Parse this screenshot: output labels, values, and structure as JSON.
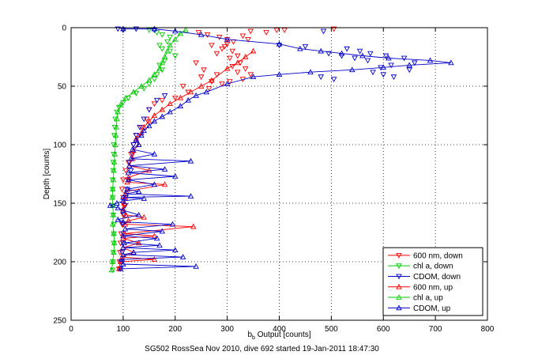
{
  "chart_data": {
    "type": "scatter",
    "title": "",
    "caption": "SG502 RossSea Nov 2010, dive 692 started 19-Jan-2011 18:47:30",
    "xlabel_main": "b",
    "xlabel_sub": "b",
    "xlabel_rest": " Output [counts]",
    "ylabel": "Depth [counts]",
    "xlim": [
      0,
      800
    ],
    "ylim": [
      0,
      250
    ],
    "y_reversed": true,
    "xticks": [
      0,
      100,
      200,
      300,
      400,
      500,
      600,
      700,
      800
    ],
    "yticks": [
      0,
      50,
      100,
      150,
      200,
      250
    ],
    "grid": true,
    "legend_position": "bottom-right",
    "series": [
      {
        "name": "600 nm, down",
        "color": "#ff0000",
        "marker": "triangle-down",
        "line": false,
        "points": [
          [
            245,
            4
          ],
          [
            262,
            6
          ],
          [
            285,
            8
          ],
          [
            300,
            10
          ],
          [
            330,
            7
          ],
          [
            345,
            3
          ],
          [
            375,
            4
          ],
          [
            395,
            2
          ],
          [
            410,
            2
          ],
          [
            505,
            1
          ],
          [
            270,
            15
          ],
          [
            290,
            18
          ],
          [
            310,
            20
          ],
          [
            320,
            24
          ],
          [
            325,
            30
          ],
          [
            305,
            26
          ],
          [
            280,
            22
          ],
          [
            295,
            16
          ],
          [
            312,
            12
          ],
          [
            340,
            10
          ],
          [
            300,
            14
          ],
          [
            310,
            33
          ],
          [
            320,
            38
          ],
          [
            335,
            35
          ],
          [
            345,
            40
          ],
          [
            330,
            44
          ],
          [
            305,
            46
          ],
          [
            290,
            48
          ],
          [
            270,
            46
          ],
          [
            250,
            42
          ],
          [
            240,
            30
          ],
          [
            255,
            36
          ],
          [
            280,
            40
          ],
          [
            265,
            52
          ],
          [
            225,
            55
          ],
          [
            215,
            50
          ],
          [
            200,
            60
          ],
          [
            175,
            62
          ],
          [
            160,
            65
          ],
          [
            150,
            70
          ],
          [
            145,
            78
          ],
          [
            135,
            85
          ],
          [
            125,
            92
          ],
          [
            120,
            100
          ],
          [
            115,
            108
          ],
          [
            110,
            115
          ],
          [
            105,
            122
          ],
          [
            100,
            130
          ],
          [
            98,
            138
          ],
          [
            100,
            145
          ],
          [
            102,
            152
          ],
          [
            100,
            160
          ],
          [
            98,
            168
          ],
          [
            96,
            176
          ],
          [
            95,
            184
          ],
          [
            94,
            192
          ],
          [
            93,
            200
          ],
          [
            92,
            206
          ]
        ]
      },
      {
        "name": "chl a, down",
        "color": "#00cc00",
        "marker": "triangle-down",
        "line": false,
        "points": [
          [
            150,
            2
          ],
          [
            165,
            4
          ],
          [
            175,
            6
          ],
          [
            190,
            8
          ],
          [
            185,
            12
          ],
          [
            170,
            15
          ],
          [
            175,
            18
          ],
          [
            190,
            20
          ],
          [
            200,
            24
          ],
          [
            180,
            28
          ],
          [
            170,
            32
          ],
          [
            175,
            36
          ],
          [
            165,
            40
          ],
          [
            160,
            44
          ],
          [
            150,
            48
          ],
          [
            140,
            52
          ],
          [
            125,
            56
          ],
          [
            110,
            60
          ],
          [
            100,
            64
          ],
          [
            92,
            68
          ],
          [
            88,
            72
          ],
          [
            85,
            78
          ],
          [
            84,
            85
          ],
          [
            83,
            92
          ],
          [
            82,
            100
          ],
          [
            82,
            108
          ],
          [
            81,
            115
          ],
          [
            81,
            122
          ],
          [
            80,
            130
          ],
          [
            80,
            138
          ],
          [
            80,
            145
          ],
          [
            81,
            152
          ],
          [
            81,
            160
          ],
          [
            82,
            168
          ],
          [
            82,
            176
          ],
          [
            82,
            184
          ],
          [
            81,
            192
          ],
          [
            80,
            200
          ],
          [
            80,
            207
          ]
        ]
      },
      {
        "name": "CDOM, down",
        "color": "#0000cc",
        "marker": "triangle-down",
        "line": false,
        "points": [
          [
            90,
            1
          ],
          [
            100,
            2
          ],
          [
            125,
            1
          ],
          [
            160,
            2
          ],
          [
            485,
            3
          ],
          [
            400,
            15
          ],
          [
            450,
            16
          ],
          [
            530,
            18
          ],
          [
            555,
            20
          ],
          [
            575,
            22
          ],
          [
            605,
            24
          ],
          [
            640,
            26
          ],
          [
            660,
            30
          ],
          [
            595,
            34
          ],
          [
            580,
            38
          ],
          [
            600,
            40
          ],
          [
            620,
            42
          ],
          [
            505,
            44
          ],
          [
            480,
            42
          ],
          [
            570,
            28
          ],
          [
            545,
            26
          ],
          [
            520,
            24
          ],
          [
            495,
            22
          ],
          [
            615,
            32
          ],
          [
            650,
            36
          ],
          [
            180,
            58
          ],
          [
            165,
            62
          ],
          [
            150,
            70
          ],
          [
            140,
            78
          ],
          [
            132,
            85
          ],
          [
            125,
            92
          ],
          [
            120,
            100
          ],
          [
            118,
            108
          ],
          [
            112,
            115
          ],
          [
            115,
            122
          ],
          [
            110,
            130
          ],
          [
            108,
            138
          ],
          [
            105,
            145
          ],
          [
            104,
            152
          ],
          [
            102,
            160
          ],
          [
            100,
            168
          ],
          [
            100,
            176
          ],
          [
            100,
            184
          ],
          [
            98,
            192
          ],
          [
            96,
            200
          ],
          [
            95,
            206
          ]
        ]
      },
      {
        "name": "600 nm, up",
        "color": "#ff0000",
        "marker": "triangle-up",
        "line": true,
        "points": [
          [
            92,
            206
          ],
          [
            95,
            200
          ],
          [
            160,
            198
          ],
          [
            98,
            196
          ],
          [
            120,
            192
          ],
          [
            100,
            188
          ],
          [
            130,
            184
          ],
          [
            100,
            180
          ],
          [
            160,
            178
          ],
          [
            102,
            176
          ],
          [
            235,
            170
          ],
          [
            104,
            168
          ],
          [
            110,
            165
          ],
          [
            140,
            162
          ],
          [
            105,
            160
          ],
          [
            100,
            155
          ],
          [
            102,
            150
          ],
          [
            104,
            145
          ],
          [
            106,
            140
          ],
          [
            180,
            134
          ],
          [
            108,
            132
          ],
          [
            110,
            128
          ],
          [
            150,
            122
          ],
          [
            112,
            118
          ],
          [
            118,
            112
          ],
          [
            120,
            105
          ],
          [
            130,
            100
          ],
          [
            125,
            95
          ],
          [
            135,
            90
          ],
          [
            140,
            85
          ],
          [
            150,
            80
          ],
          [
            160,
            75
          ],
          [
            175,
            70
          ],
          [
            190,
            65
          ],
          [
            210,
            60
          ],
          [
            230,
            55
          ],
          [
            250,
            50
          ],
          [
            270,
            45
          ],
          [
            300,
            35
          ],
          [
            320,
            30
          ],
          [
            335,
            25
          ],
          [
            350,
            20
          ]
        ]
      },
      {
        "name": "chl a, up",
        "color": "#00cc00",
        "marker": "triangle-up",
        "line": true,
        "points": [
          [
            78,
            207
          ],
          [
            80,
            200
          ],
          [
            82,
            192
          ],
          [
            83,
            184
          ],
          [
            82,
            176
          ],
          [
            80,
            168
          ],
          [
            81,
            160
          ],
          [
            80,
            152
          ],
          [
            79,
            145
          ],
          [
            80,
            138
          ],
          [
            81,
            130
          ],
          [
            82,
            122
          ],
          [
            83,
            115
          ],
          [
            84,
            108
          ],
          [
            85,
            100
          ],
          [
            86,
            92
          ],
          [
            87,
            85
          ],
          [
            88,
            78
          ],
          [
            90,
            72
          ],
          [
            95,
            66
          ],
          [
            105,
            60
          ],
          [
            120,
            55
          ],
          [
            135,
            50
          ],
          [
            150,
            45
          ],
          [
            160,
            40
          ],
          [
            170,
            35
          ],
          [
            175,
            30
          ],
          [
            180,
            25
          ],
          [
            185,
            20
          ],
          [
            190,
            15
          ],
          [
            200,
            10
          ],
          [
            210,
            5
          ],
          [
            220,
            2
          ]
        ]
      },
      {
        "name": "CDOM, up",
        "color": "#0000cc",
        "marker": "triangle-up",
        "line": true,
        "points": [
          [
            95,
            206
          ],
          [
            240,
            204
          ],
          [
            100,
            202
          ],
          [
            98,
            198
          ],
          [
            215,
            196
          ],
          [
            100,
            194
          ],
          [
            120,
            192
          ],
          [
            200,
            190
          ],
          [
            100,
            188
          ],
          [
            170,
            186
          ],
          [
            102,
            184
          ],
          [
            165,
            180
          ],
          [
            100,
            178
          ],
          [
            175,
            174
          ],
          [
            104,
            172
          ],
          [
            195,
            168
          ],
          [
            100,
            166
          ],
          [
            90,
            164
          ],
          [
            130,
            160
          ],
          [
            100,
            156
          ],
          [
            90,
            154
          ],
          [
            75,
            152
          ],
          [
            88,
            150
          ],
          [
            100,
            148
          ],
          [
            140,
            146
          ],
          [
            100,
            145
          ],
          [
            230,
            144
          ],
          [
            105,
            142
          ],
          [
            130,
            140
          ],
          [
            108,
            138
          ],
          [
            160,
            134
          ],
          [
            110,
            130
          ],
          [
            200,
            127
          ],
          [
            110,
            124
          ],
          [
            180,
            121
          ],
          [
            112,
            118
          ],
          [
            230,
            114
          ],
          [
            115,
            112
          ],
          [
            160,
            108
          ],
          [
            118,
            104
          ],
          [
            130,
            100
          ],
          [
            125,
            96
          ],
          [
            135,
            92
          ],
          [
            140,
            88
          ],
          [
            150,
            84
          ],
          [
            160,
            80
          ],
          [
            175,
            76
          ],
          [
            190,
            72
          ],
          [
            210,
            67
          ],
          [
            225,
            62
          ],
          [
            240,
            58
          ],
          [
            260,
            55
          ],
          [
            300,
            48
          ],
          [
            350,
            42
          ],
          [
            400,
            40
          ],
          [
            460,
            38
          ],
          [
            540,
            36
          ],
          [
            600,
            34
          ],
          [
            650,
            32
          ],
          [
            730,
            30
          ],
          [
            690,
            28
          ],
          [
            610,
            26
          ],
          [
            560,
            24
          ],
          [
            520,
            22
          ],
          [
            480,
            20
          ],
          [
            440,
            18
          ],
          [
            400,
            14
          ],
          [
            300,
            10
          ],
          [
            250,
            6
          ],
          [
            200,
            3
          ],
          [
            160,
            1
          ],
          [
            100,
            1
          ]
        ]
      }
    ]
  }
}
